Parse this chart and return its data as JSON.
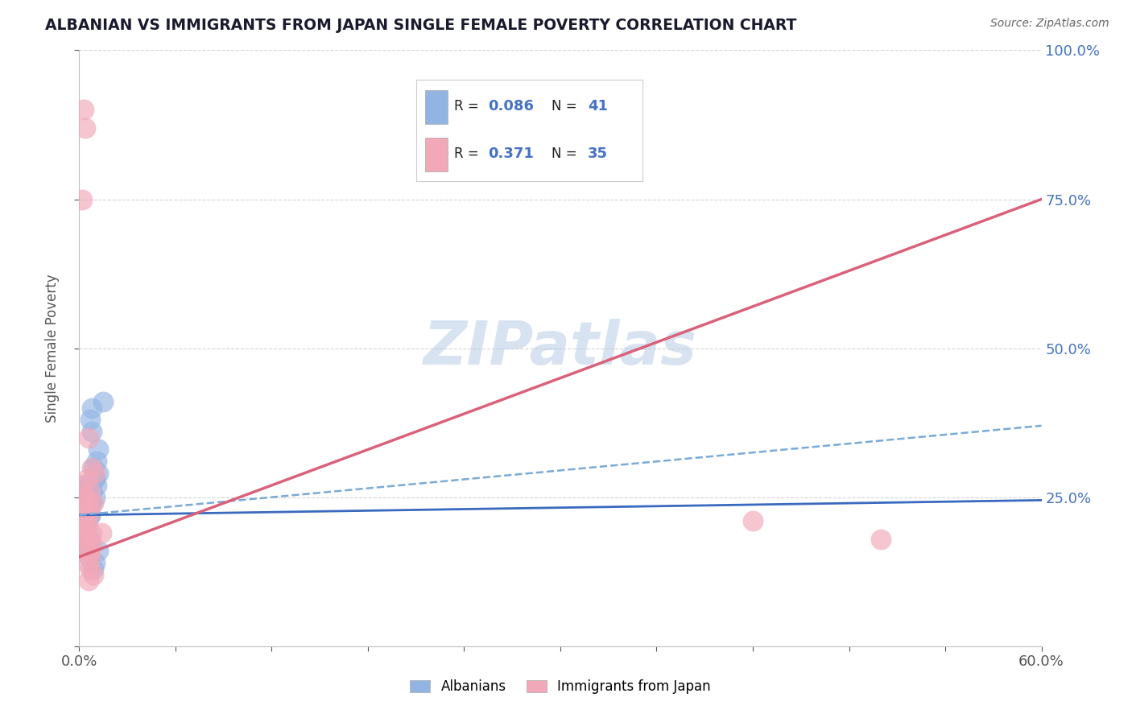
{
  "title": "ALBANIAN VS IMMIGRANTS FROM JAPAN SINGLE FEMALE POVERTY CORRELATION CHART",
  "source": "Source: ZipAtlas.com",
  "ylabel": "Single Female Poverty",
  "xlim": [
    0.0,
    0.6
  ],
  "ylim": [
    0.0,
    1.0
  ],
  "xticks": [
    0.0,
    0.06,
    0.12,
    0.18,
    0.24,
    0.3,
    0.36,
    0.42,
    0.48,
    0.54,
    0.6
  ],
  "xtick_labels_show": [
    "0.0%",
    "60.0%"
  ],
  "yticks": [
    0.0,
    0.25,
    0.5,
    0.75,
    1.0
  ],
  "ytick_labels": [
    "",
    "25.0%",
    "50.0%",
    "75.0%",
    "100.0%"
  ],
  "watermark": "ZIPatlas",
  "blue_color": "#92b4e3",
  "pink_color": "#f2a8b8",
  "blue_line_color": "#3a6abf",
  "pink_line_color": "#d9627a",
  "blue_line_style": "-",
  "pink_line_style": "-",
  "blue_dashed_color": "#7aaad8",
  "albanians_x": [
    0.003,
    0.004,
    0.005,
    0.006,
    0.007,
    0.008,
    0.009,
    0.01,
    0.011,
    0.012,
    0.003,
    0.004,
    0.005,
    0.006,
    0.007,
    0.008,
    0.009,
    0.01,
    0.011,
    0.012,
    0.003,
    0.004,
    0.005,
    0.006,
    0.007,
    0.008,
    0.002,
    0.003,
    0.004,
    0.005,
    0.006,
    0.007,
    0.008,
    0.01,
    0.012,
    0.015,
    0.004,
    0.005,
    0.006,
    0.007,
    0.009
  ],
  "albanians_y": [
    0.25,
    0.22,
    0.23,
    0.27,
    0.24,
    0.26,
    0.28,
    0.25,
    0.27,
    0.29,
    0.2,
    0.19,
    0.21,
    0.23,
    0.22,
    0.24,
    0.3,
    0.28,
    0.31,
    0.33,
    0.18,
    0.17,
    0.2,
    0.22,
    0.38,
    0.4,
    0.27,
    0.26,
    0.25,
    0.24,
    0.23,
    0.22,
    0.36,
    0.14,
    0.16,
    0.41,
    0.19,
    0.21,
    0.15,
    0.18,
    0.13
  ],
  "japan_x": [
    0.002,
    0.003,
    0.004,
    0.005,
    0.006,
    0.007,
    0.008,
    0.009,
    0.01,
    0.003,
    0.004,
    0.005,
    0.006,
    0.007,
    0.008,
    0.003,
    0.004,
    0.005,
    0.006,
    0.007,
    0.008,
    0.009,
    0.003,
    0.004,
    0.005,
    0.006,
    0.007,
    0.003,
    0.004,
    0.005,
    0.006,
    0.014,
    0.42,
    0.5,
    0.002
  ],
  "japan_y": [
    0.27,
    0.25,
    0.22,
    0.28,
    0.23,
    0.26,
    0.3,
    0.24,
    0.29,
    0.2,
    0.19,
    0.21,
    0.35,
    0.15,
    0.17,
    0.18,
    0.16,
    0.14,
    0.22,
    0.13,
    0.19,
    0.12,
    0.23,
    0.2,
    0.18,
    0.11,
    0.16,
    0.9,
    0.87,
    0.25,
    0.24,
    0.19,
    0.21,
    0.18,
    0.75
  ],
  "blue_trendline": [
    0.0,
    0.6,
    0.22,
    0.245
  ],
  "blue_dashed_trendline": [
    0.0,
    0.6,
    0.22,
    0.37
  ],
  "pink_trendline": [
    0.0,
    0.6,
    0.15,
    0.75
  ]
}
